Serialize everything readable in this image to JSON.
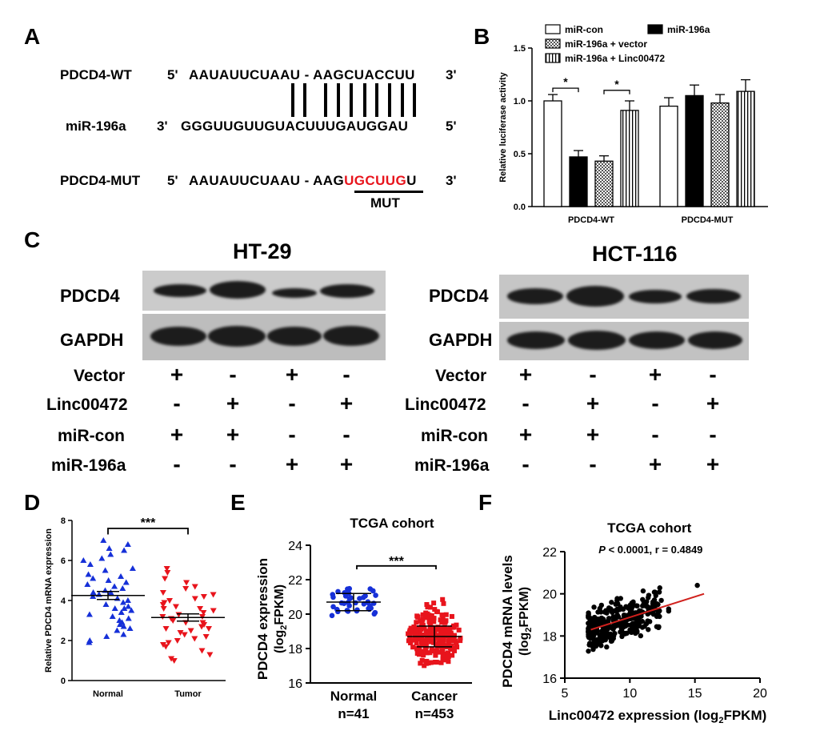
{
  "panels": {
    "A": "A",
    "B": "B",
    "C": "C",
    "D": "D",
    "E": "E",
    "F": "F"
  },
  "panelA": {
    "wt_label": "PDCD4-WT",
    "wt_5": "5'",
    "wt_seq": "AAUAUUCUAAU - AAGCUACCUU",
    "wt_3": "3'",
    "mir_label": "miR-196a",
    "mir_3": "3'",
    "mir_seq": "GGGUUGUUGUACUUUGAUGGAU",
    "mir_5": "5'",
    "mut_label": "PDCD4-MUT",
    "mut_5": "5'",
    "mut_seq_pre": "AAUAUUCUAAU - AAG",
    "mut_seq_red": "UGCUUG",
    "mut_seq_post": "U",
    "mut_3": "3'",
    "mut_tag": "MUT",
    "colors": {
      "mutant": "#e8141c"
    }
  },
  "chart_data": [
    {
      "id": "B",
      "type": "bar",
      "ylabel": "Relative luciferase activity",
      "ylim": [
        0,
        1.5
      ],
      "yticks": [
        "0.0",
        "0.5",
        "1.0",
        "1.5"
      ],
      "categories": [
        "PDCD4-WT",
        "PDCD4-MUT"
      ],
      "series": [
        {
          "name": "miR-con",
          "values": [
            1.0,
            0.95
          ],
          "errors": [
            0.06,
            0.08
          ]
        },
        {
          "name": "miR-196a",
          "values": [
            0.47,
            1.05
          ],
          "errors": [
            0.06,
            0.1
          ]
        },
        {
          "name": "miR-196a + vector",
          "values": [
            0.43,
            0.98
          ],
          "errors": [
            0.05,
            0.08
          ]
        },
        {
          "name": "miR-196a + Linc00472",
          "values": [
            0.91,
            1.09
          ],
          "errors": [
            0.09,
            0.11
          ]
        }
      ],
      "significance": [
        {
          "between": [
            "miR-con",
            "miR-196a"
          ],
          "label": "*"
        },
        {
          "between": [
            "miR-196a + vector",
            "miR-196a + Linc00472"
          ],
          "label": "*"
        }
      ],
      "legend_position": "top"
    },
    {
      "id": "D",
      "type": "scatter",
      "ylabel": "Relative PDCD4 mRNA expression",
      "ylim": [
        0,
        8
      ],
      "yticks": [
        "0",
        "2",
        "4",
        "6",
        "8"
      ],
      "categories": [
        "Normal",
        "Tumor"
      ],
      "group_means": [
        4.25,
        3.15
      ],
      "group_sem": [
        0.2,
        0.18
      ],
      "group_colors": [
        "#1630d8",
        "#e8141c"
      ],
      "group_points": [
        [
          7.0,
          6.8,
          6.6,
          6.5,
          6.3,
          6.1,
          6.0,
          5.8,
          5.6,
          5.5,
          5.3,
          5.2,
          5.0,
          4.9,
          4.8,
          4.7,
          4.6,
          4.5,
          4.4,
          4.3,
          4.2,
          4.1,
          4.0,
          3.9,
          3.8,
          3.7,
          3.6,
          3.5,
          3.4,
          3.3,
          3.2,
          3.1,
          3.0,
          2.9,
          2.8,
          2.7,
          2.6,
          2.5,
          2.3,
          2.2,
          2.0,
          1.9,
          3.6,
          4.4,
          5.1
        ],
        [
          5.6,
          5.4,
          5.1,
          4.9,
          4.7,
          4.6,
          4.4,
          4.2,
          4.1,
          4.0,
          3.9,
          3.8,
          3.7,
          3.6,
          3.5,
          3.4,
          3.3,
          3.2,
          3.1,
          3.0,
          2.9,
          2.9,
          2.8,
          2.7,
          2.6,
          2.5,
          2.4,
          2.3,
          2.2,
          2.1,
          2.0,
          1.9,
          1.8,
          1.7,
          1.5,
          1.3,
          1.1,
          1.0,
          3.2,
          3.6,
          2.6,
          4.3
        ]
      ],
      "significance_label": "***"
    },
    {
      "id": "E",
      "type": "scatter",
      "title": "TCGA cohort",
      "ylabel": "PDCD4 expression",
      "ylabel_sub": "(log",
      "ylabel_sub2": "2",
      "ylabel_sub3": "FPKM)",
      "ylim": [
        16,
        24
      ],
      "yticks": [
        "16",
        "18",
        "20",
        "22",
        "24"
      ],
      "categories": [
        "Normal",
        "Cancer"
      ],
      "counts": [
        "n=41",
        "n=453"
      ],
      "group_means": [
        20.7,
        18.7
      ],
      "group_sd": [
        0.5,
        0.6
      ],
      "group_colors": [
        "#1630d8",
        "#e8141c"
      ],
      "significance_label": "***"
    },
    {
      "id": "F",
      "type": "scatter",
      "title": "TCGA cohort",
      "annotation_p": "P",
      "annotation_rest": " < 0.0001, r = 0.4849",
      "ylabel": "PDCD4 mRNA levels",
      "ylabel_sub": "(log",
      "ylabel_sub2": "2",
      "ylabel_sub3": "FPKM)",
      "xlabel": "Linc00472 expression (log",
      "xlabel_sub": "2",
      "xlabel_end": "FPKM)",
      "xlim": [
        5,
        20
      ],
      "ylim": [
        16,
        22
      ],
      "xticks": [
        "5",
        "10",
        "15",
        "20"
      ],
      "yticks": [
        "16",
        "18",
        "20",
        "22"
      ],
      "fit_line": {
        "x": [
          7,
          15.7
        ],
        "y": [
          18.3,
          20.0
        ]
      },
      "line_color": "#d0201c"
    }
  ],
  "panelC": {
    "left_title": "HT-29",
    "right_title": "HCT-116",
    "protein1": "PDCD4",
    "protein2": "GAPDH",
    "rows": [
      {
        "label": "Vector",
        "signs": [
          "+",
          "-",
          "+",
          "-"
        ]
      },
      {
        "label": "Linc00472",
        "signs": [
          "-",
          "+",
          "-",
          "+"
        ]
      },
      {
        "label": "miR-con",
        "signs": [
          "+",
          "+",
          "-",
          "-"
        ]
      },
      {
        "label": "miR-196a",
        "signs": [
          "-",
          "-",
          "+",
          "+"
        ]
      }
    ]
  }
}
